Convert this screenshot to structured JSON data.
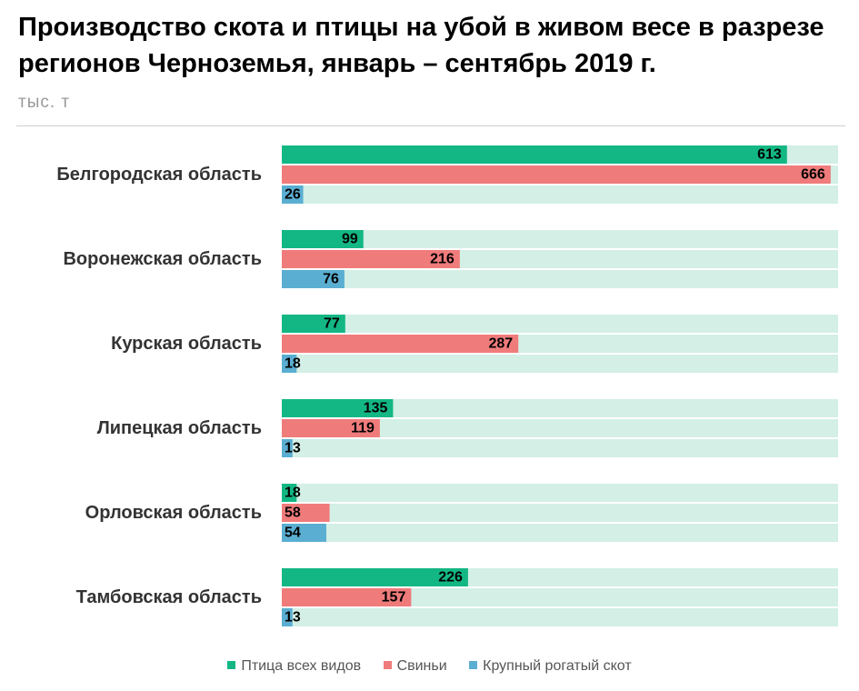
{
  "title": "Производство скота и птицы на убой в живом весе в разрезе регионов Черноземья, январь – сентябрь 2019 г.",
  "unit": "тыс. т",
  "chart_data": {
    "type": "bar",
    "orientation": "horizontal",
    "categories": [
      "Белгородская область",
      "Воронежская область",
      "Курская область",
      "Липецкая область",
      "Орловская область",
      "Тамбовская область"
    ],
    "series": [
      {
        "name": "Птица всех видов",
        "color": "#13b784",
        "values": [
          613,
          99,
          77,
          135,
          18,
          226
        ]
      },
      {
        "name": "Свиньи",
        "color": "#f07b7b",
        "values": [
          666,
          216,
          287,
          119,
          58,
          157
        ]
      },
      {
        "name": "Крупный рогатый скот",
        "color": "#5aaed2",
        "values": [
          26,
          76,
          18,
          13,
          54,
          13
        ]
      }
    ],
    "xlim": [
      0,
      675
    ],
    "track_color": "#d3efe6",
    "legend_position": "bottom",
    "grid": false
  }
}
